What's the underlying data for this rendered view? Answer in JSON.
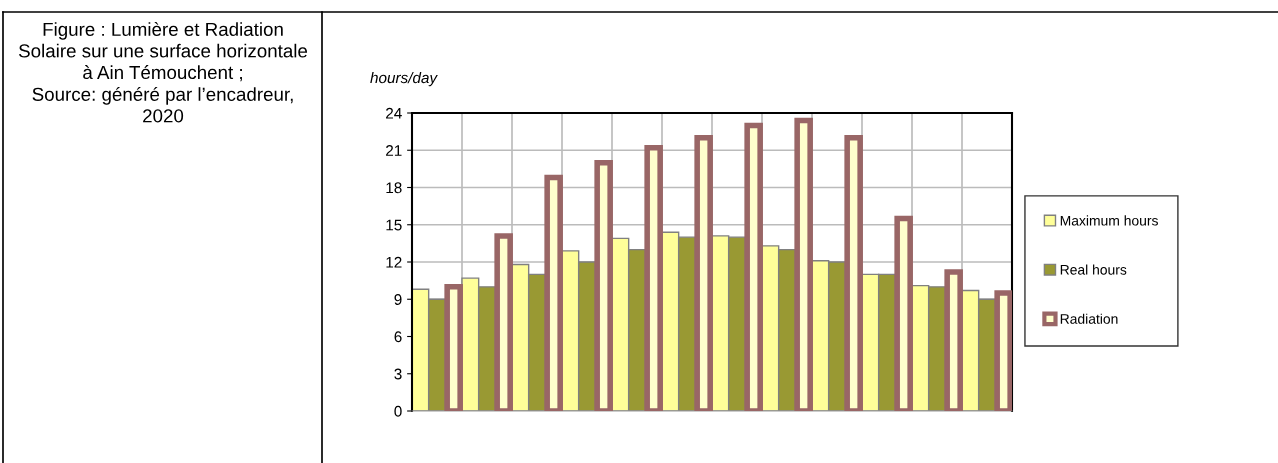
{
  "chart_data": {
    "type": "bar",
    "ylabel": "hours/day",
    "categories": [
      null,
      null,
      null,
      null,
      null,
      null,
      null,
      null,
      null,
      null,
      null,
      null
    ],
    "series": [
      {
        "name": "Maximum hours",
        "color": "#ffff99",
        "values": [
          9.8,
          10.7,
          11.8,
          12.9,
          13.9,
          14.4,
          14.1,
          13.3,
          12.1,
          11.0,
          10.1,
          9.7
        ]
      },
      {
        "name": "Real hours",
        "color": "#999933",
        "values": [
          9.0,
          10.0,
          11.0,
          12.0,
          13.0,
          14.0,
          14.0,
          13.0,
          12.0,
          11.0,
          10.0,
          9.0
        ]
      },
      {
        "name": "Radiation",
        "color": "#996666",
        "values": [
          10.0,
          14.1,
          18.8,
          20.0,
          21.2,
          22.0,
          23.0,
          23.4,
          22.0,
          15.5,
          11.2,
          9.5
        ]
      }
    ],
    "ylim": [
      0,
      24
    ],
    "yticks": [
      0,
      3,
      6,
      9,
      12,
      15,
      18,
      21,
      24
    ],
    "grid": true,
    "legend": "right",
    "annotations": [
      "Figure : Lumière et Radiation Solaire sur une surface horizontale à Ain Témouchent ;",
      "Source: généré par l’encadreur, 2020"
    ]
  }
}
